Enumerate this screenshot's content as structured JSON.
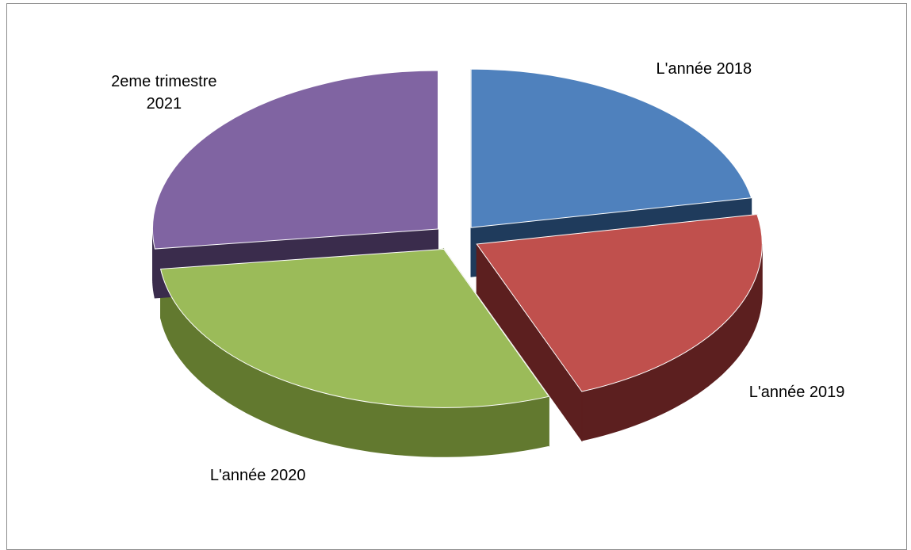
{
  "chart_data": {
    "type": "pie",
    "labels": [
      "L'année 2018",
      "L'année 2019",
      "L'année 2020",
      "2eme trimestre 2021"
    ],
    "values": [
      22,
      22,
      29,
      27
    ],
    "colors": [
      "#4f81bd",
      "#c0504d",
      "#9bbb59",
      "#8064a2"
    ],
    "side_colors": [
      "#1f3b5c",
      "#5c1f1f",
      "#62792f",
      "#3a2c4c"
    ],
    "exploded": true,
    "three_d": true
  }
}
